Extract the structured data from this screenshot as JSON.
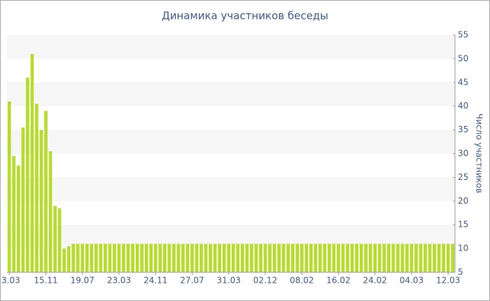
{
  "chart_data": {
    "type": "bar",
    "title": "Динамика участников беседы",
    "y_label": "Число участников",
    "categories": [
      "3.03",
      null,
      null,
      null,
      null,
      null,
      null,
      null,
      "15.11",
      null,
      null,
      null,
      null,
      null,
      null,
      null,
      "19.07",
      null,
      null,
      null,
      null,
      null,
      null,
      null,
      "23.03",
      null,
      null,
      null,
      null,
      null,
      null,
      null,
      "24.11",
      null,
      null,
      null,
      null,
      null,
      null,
      null,
      "27.07",
      null,
      null,
      null,
      null,
      null,
      null,
      null,
      "31.03",
      null,
      null,
      null,
      null,
      null,
      null,
      null,
      "02.12",
      null,
      null,
      null,
      null,
      null,
      null,
      null,
      "08.02",
      null,
      null,
      null,
      null,
      null,
      null,
      null,
      "16.02",
      null,
      null,
      null,
      null,
      null,
      null,
      null,
      "24.02",
      null,
      null,
      null,
      null,
      null,
      null,
      null,
      "04.03",
      null,
      null,
      null,
      null,
      null,
      null,
      null,
      "12.03",
      null
    ],
    "values": [
      41,
      29.5,
      27.5,
      35.5,
      46,
      51,
      40.5,
      35,
      39,
      30.5,
      19,
      18.5,
      10,
      10.5,
      11,
      11,
      11,
      11,
      11,
      11,
      11,
      11,
      11,
      11,
      11,
      11,
      11,
      11,
      11,
      11,
      11,
      11,
      11,
      11,
      11,
      11,
      11,
      11,
      11,
      11,
      11,
      11,
      11,
      11,
      11,
      11,
      11,
      11,
      11,
      11,
      11,
      11,
      11,
      11,
      11,
      11,
      11,
      11,
      11,
      11,
      11,
      11,
      11,
      11,
      11,
      11,
      11,
      11,
      11,
      11,
      11,
      11,
      11,
      11,
      11,
      11,
      11,
      11,
      11,
      11,
      11,
      11,
      11,
      11,
      11,
      11,
      11,
      11,
      11,
      11,
      11,
      11,
      11,
      11,
      11,
      11,
      11,
      11
    ],
    "color": "#b8dc2e",
    "ylim": [
      5,
      55
    ],
    "yticks": [
      5,
      10,
      15,
      20,
      25,
      30,
      35,
      40,
      45,
      50,
      55
    ],
    "grid": true
  }
}
